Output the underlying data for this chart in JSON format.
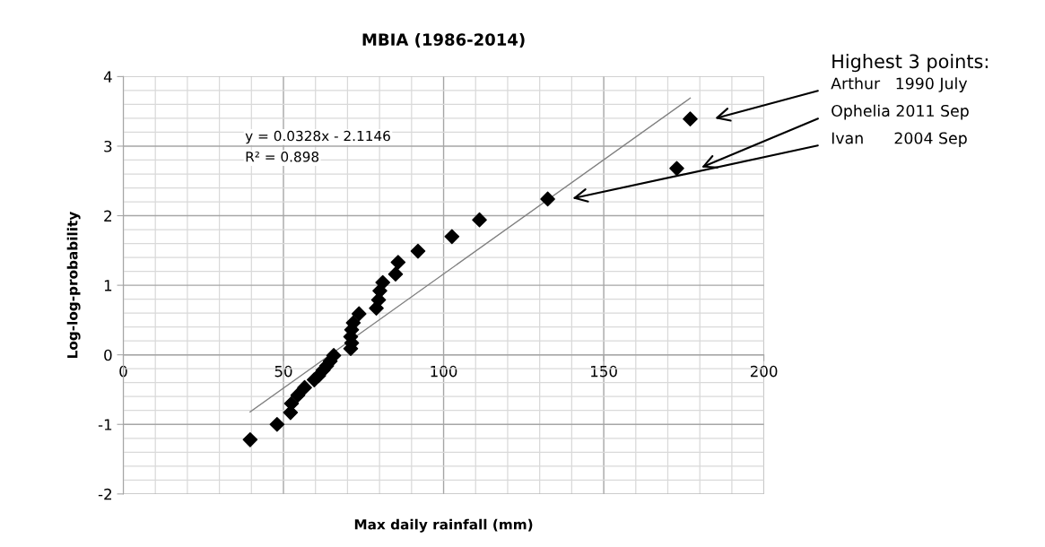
{
  "chart_data": {
    "type": "scatter",
    "title": "MBIA (1986-2014)",
    "xlabel": "Max daily rainfall (mm)",
    "ylabel": "Log-log-probability",
    "xlim": [
      0,
      200
    ],
    "xticks": [
      0,
      50,
      100,
      150,
      200
    ],
    "ylim": [
      -2,
      4
    ],
    "yticks": [
      -2,
      -1,
      0,
      1,
      2,
      3,
      4
    ],
    "grid": true,
    "legend": false,
    "marker": "diamond",
    "series": [
      {
        "color": "#000000",
        "x": [
          39.6,
          48.0,
          52.2,
          52.5,
          54.5,
          56.6,
          59.6,
          61.0,
          62.4,
          63.5,
          64.6,
          65.7,
          71.0,
          71.3,
          71.0,
          71.3,
          71.8,
          73.6,
          79.0,
          79.7,
          80.1,
          81.0,
          85.0,
          85.8,
          92.0,
          102.6,
          111.2,
          132.5,
          172.8,
          177.0
        ],
        "values": [
          -1.22,
          -1.0,
          -0.83,
          -0.7,
          -0.58,
          -0.47,
          -0.36,
          -0.3,
          -0.22,
          -0.16,
          -0.09,
          -0.01,
          0.09,
          0.17,
          0.26,
          0.36,
          0.46,
          0.59,
          0.67,
          0.79,
          0.92,
          1.04,
          1.16,
          1.33,
          1.49,
          1.7,
          1.94,
          2.24,
          2.68,
          3.39
        ]
      },
      {
        "type": "line",
        "color": "#808080",
        "marker": "none",
        "line_style": "solid",
        "x": [
          39.6,
          177.0
        ],
        "values": [
          -0.82,
          3.69
        ]
      }
    ],
    "annotations": [
      "y = 0.0328x - 2.1146",
      "R² = 0.898",
      "Highest 3 points:",
      "Arthur   1990 July",
      "Ophelia 2011 Sep",
      "Ivan      2004 Sep"
    ]
  }
}
